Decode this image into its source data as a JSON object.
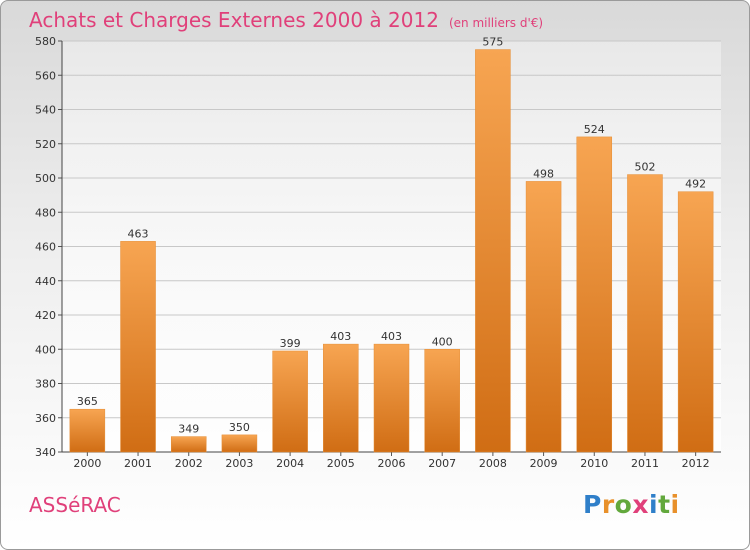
{
  "header": {
    "title": "Achats et Charges Externes 2000 à 2012",
    "unit": "(en milliers d'€)"
  },
  "footer": {
    "commune": "ASSéRAC",
    "brand": "Proxiti"
  },
  "colors": {
    "bar_light": "#f7a552",
    "bar_dark": "#d06d14",
    "title": "#e0407a",
    "logo_letters": [
      "#2f7fc9",
      "#e8902a",
      "#62a83c",
      "#e0407a",
      "#2f7fc9",
      "#62a83c",
      "#e8902a"
    ]
  },
  "chart_data": {
    "type": "bar",
    "title": "Achats et Charges Externes 2000 à 2012",
    "xlabel": "",
    "ylabel": "",
    "categories": [
      "2000",
      "2001",
      "2002",
      "2003",
      "2004",
      "2005",
      "2006",
      "2007",
      "2008",
      "2009",
      "2010",
      "2011",
      "2012"
    ],
    "values": [
      365,
      463,
      349,
      350,
      399,
      403,
      403,
      400,
      575,
      498,
      524,
      502,
      492
    ],
    "ylim": [
      340,
      580
    ],
    "yticks": [
      340,
      360,
      380,
      400,
      420,
      440,
      460,
      480,
      500,
      520,
      540,
      560,
      580
    ],
    "grid": true,
    "legend": "none"
  }
}
